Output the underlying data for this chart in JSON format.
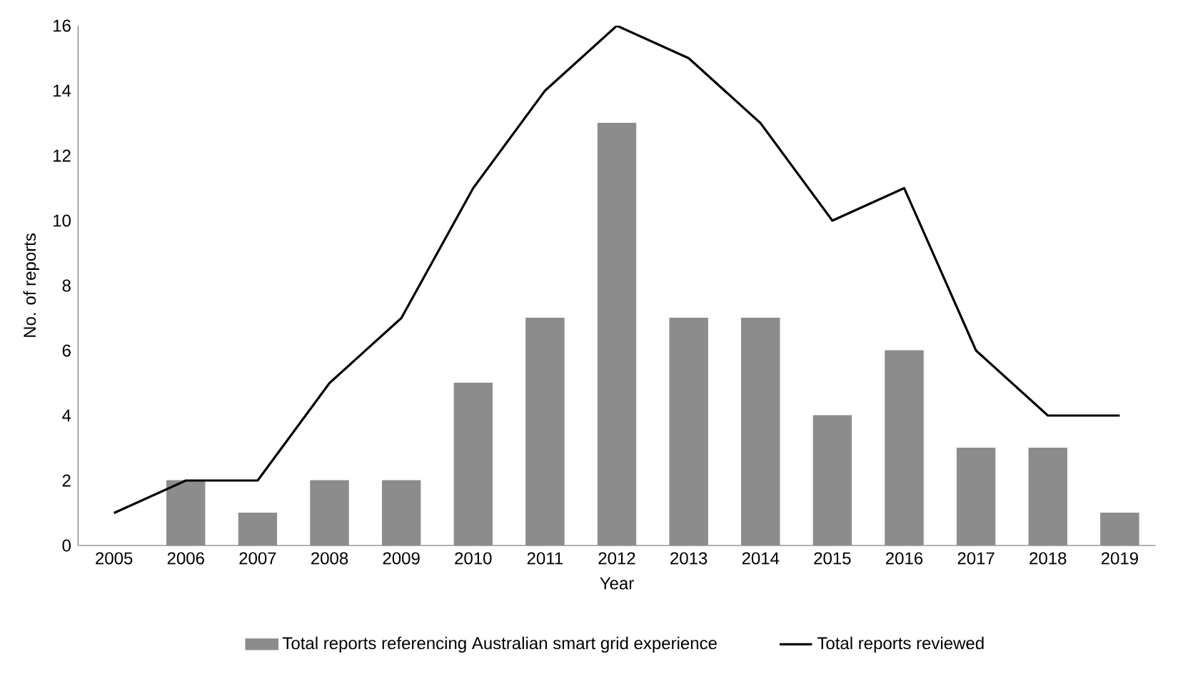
{
  "chart_data": {
    "type": "bar",
    "xlabel": "Year",
    "ylabel": "No. of reports",
    "categories": [
      "2005",
      "2006",
      "2007",
      "2008",
      "2009",
      "2010",
      "2011",
      "2012",
      "2013",
      "2014",
      "2015",
      "2016",
      "2017",
      "2018",
      "2019"
    ],
    "series": [
      {
        "name": "Total reports referencing Australian smart grid experience",
        "color": "#8c8c8c",
        "values": [
          null,
          2,
          1,
          2,
          2,
          5,
          7,
          13,
          7,
          7,
          4,
          6,
          3,
          3,
          1
        ]
      },
      {
        "name": "Total reports reviewed",
        "type": "line",
        "color": "#000000",
        "values": [
          1,
          2,
          2,
          5,
          7,
          11,
          14,
          16,
          15,
          13,
          10,
          11,
          6,
          4,
          4
        ]
      }
    ],
    "ylim": [
      0,
      16
    ],
    "yticks": [
      0,
      2,
      4,
      6,
      8,
      10,
      12,
      14,
      16
    ],
    "grid": false,
    "legend": "bottom",
    "marker": "none",
    "line_style": "solid"
  }
}
